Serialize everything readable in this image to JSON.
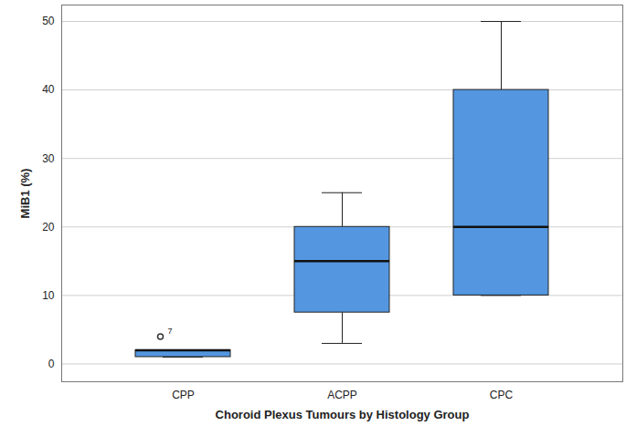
{
  "chart_data": {
    "type": "box",
    "xlabel": "Choroid Plexus Tumours by Histology Group",
    "ylabel": "MiB1 (%)",
    "categories": [
      "CPP",
      "ACPP",
      "CPC"
    ],
    "boxes": [
      {
        "min": 1,
        "q1": 1,
        "median": 2,
        "q3": 2,
        "max": 2,
        "outliers": [
          {
            "value": 4,
            "label": "7"
          }
        ]
      },
      {
        "min": 3,
        "q1": 7.5,
        "median": 15,
        "q3": 20,
        "max": 25,
        "outliers": []
      },
      {
        "min": 10,
        "q1": 10,
        "median": 20,
        "q3": 40,
        "max": 50,
        "outliers": []
      }
    ],
    "color": "#5497e0",
    "ylim": [
      -2.6,
      52.4
    ],
    "yticks": [
      0,
      10,
      20,
      30,
      40,
      50
    ],
    "grid": true
  }
}
